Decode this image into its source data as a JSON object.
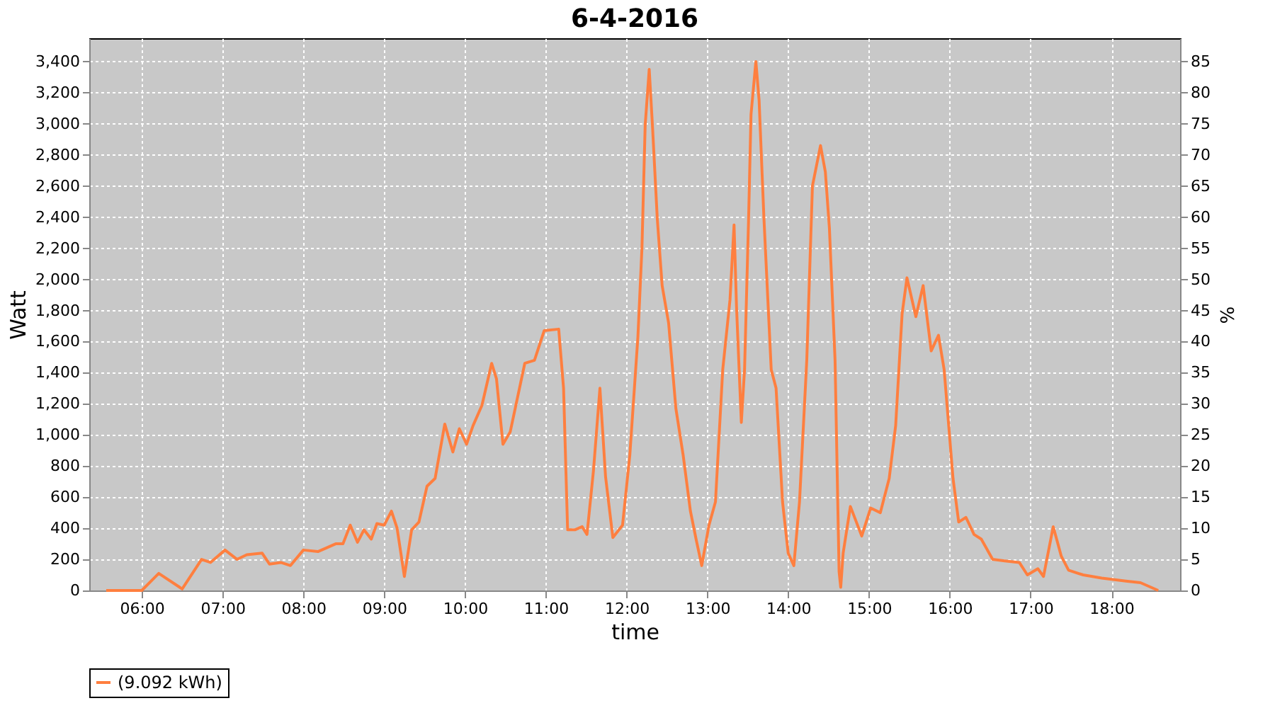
{
  "chart_data": {
    "type": "line",
    "title": "6-4-2016",
    "xlabel": "time",
    "ylabel": "Watt",
    "y2label": "%",
    "x": [
      5.56,
      6.0,
      6.21,
      6.5,
      6.74,
      6.85,
      7.03,
      7.18,
      7.3,
      7.49,
      7.58,
      7.72,
      7.84,
      8.0,
      8.18,
      8.4,
      8.49,
      8.58,
      8.67,
      8.75,
      8.84,
      8.91,
      9.0,
      9.09,
      9.16,
      9.25,
      9.34,
      9.43,
      9.53,
      9.63,
      9.75,
      9.85,
      9.93,
      10.02,
      10.1,
      10.21,
      10.33,
      10.39,
      10.47,
      10.56,
      10.74,
      10.86,
      10.98,
      11.16,
      11.22,
      11.27,
      11.36,
      11.45,
      11.51,
      11.59,
      11.67,
      11.74,
      11.83,
      11.95,
      12.04,
      12.14,
      12.19,
      12.23,
      12.28,
      12.32,
      12.38,
      12.44,
      12.52,
      12.61,
      12.7,
      12.79,
      12.86,
      12.93,
      13.02,
      13.1,
      13.19,
      13.28,
      13.33,
      13.36,
      13.42,
      13.46,
      13.51,
      13.54,
      13.6,
      13.64,
      13.7,
      13.79,
      13.85,
      13.93,
      14.0,
      14.07,
      14.14,
      14.23,
      14.3,
      14.4,
      14.46,
      14.51,
      14.58,
      14.63,
      14.65,
      14.68,
      14.77,
      14.91,
      15.02,
      15.14,
      15.25,
      15.33,
      15.41,
      15.47,
      15.58,
      15.67,
      15.77,
      15.86,
      15.93,
      16.04,
      16.11,
      16.2,
      16.3,
      16.39,
      16.53,
      16.68,
      16.86,
      16.96,
      17.09,
      17.16,
      17.28,
      17.38,
      17.47,
      17.65,
      17.88,
      18.18,
      18.36,
      18.58
    ],
    "series": [
      {
        "name": "(9.092 kWh)",
        "color": "#ff7f3f",
        "values": [
          0,
          0,
          110,
          10,
          200,
          180,
          260,
          200,
          230,
          240,
          170,
          180,
          160,
          260,
          250,
          300,
          300,
          420,
          310,
          390,
          330,
          430,
          420,
          510,
          400,
          90,
          390,
          440,
          670,
          720,
          1070,
          890,
          1040,
          940,
          1060,
          1190,
          1460,
          1360,
          940,
          1020,
          1460,
          1480,
          1670,
          1680,
          1300,
          390,
          390,
          410,
          360,
          770,
          1300,
          730,
          340,
          420,
          870,
          1630,
          2200,
          2990,
          3350,
          2990,
          2390,
          1960,
          1720,
          1170,
          870,
          510,
          330,
          160,
          420,
          570,
          1420,
          1870,
          2350,
          1830,
          1080,
          1420,
          2390,
          3060,
          3400,
          3150,
          2390,
          1420,
          1300,
          570,
          240,
          160,
          570,
          1480,
          2600,
          2860,
          2690,
          2330,
          1480,
          120,
          20,
          240,
          540,
          350,
          530,
          500,
          720,
          1060,
          1780,
          2010,
          1760,
          1960,
          1540,
          1640,
          1420,
          720,
          440,
          470,
          360,
          330,
          200,
          190,
          180,
          100,
          140,
          90,
          410,
          220,
          130,
          100,
          80,
          60,
          50,
          0
        ]
      }
    ],
    "xlim": [
      5.35,
      18.85
    ],
    "xticks": [
      {
        "value": 6,
        "label": "06:00"
      },
      {
        "value": 7,
        "label": "07:00"
      },
      {
        "value": 8,
        "label": "08:00"
      },
      {
        "value": 9,
        "label": "09:00"
      },
      {
        "value": 10,
        "label": "10:00"
      },
      {
        "value": 11,
        "label": "11:00"
      },
      {
        "value": 12,
        "label": "12:00"
      },
      {
        "value": 13,
        "label": "13:00"
      },
      {
        "value": 14,
        "label": "14:00"
      },
      {
        "value": 15,
        "label": "15:00"
      },
      {
        "value": 16,
        "label": "16:00"
      },
      {
        "value": 17,
        "label": "17:00"
      },
      {
        "value": 18,
        "label": "18:00"
      }
    ],
    "ylim": [
      0,
      3550
    ],
    "yticks": [
      0,
      200,
      400,
      600,
      800,
      {
        "value": 1000,
        "label": "1,000"
      },
      {
        "value": 1200,
        "label": "1,200"
      },
      {
        "value": 1400,
        "label": "1,400"
      },
      {
        "value": 1600,
        "label": "1,600"
      },
      {
        "value": 1800,
        "label": "1,800"
      },
      {
        "value": 2000,
        "label": "2,000"
      },
      {
        "value": 2200,
        "label": "2,200"
      },
      {
        "value": 2400,
        "label": "2,400"
      },
      {
        "value": 2600,
        "label": "2,600"
      },
      {
        "value": 2800,
        "label": "2,800"
      },
      {
        "value": 3000,
        "label": "3,000"
      },
      {
        "value": 3200,
        "label": "3,200"
      },
      {
        "value": 3400,
        "label": "3,400"
      }
    ],
    "y2lim": [
      0,
      88.75
    ],
    "y2ticks": [
      0,
      5,
      10,
      15,
      20,
      25,
      30,
      35,
      40,
      45,
      50,
      55,
      60,
      65,
      70,
      75,
      80,
      85
    ],
    "grid": true,
    "legend": "bottom",
    "line_style": "solid",
    "marker": "none"
  }
}
